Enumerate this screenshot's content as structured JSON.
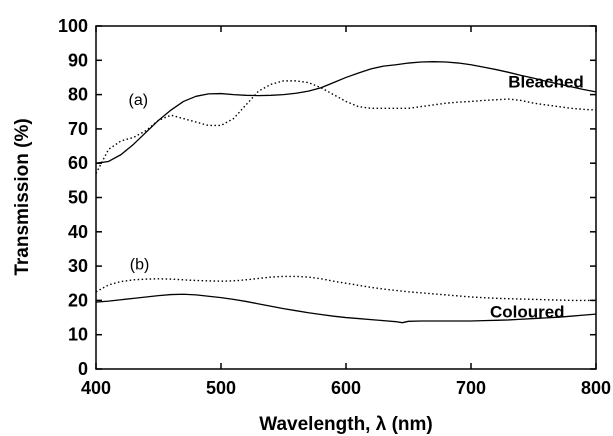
{
  "chart_data": {
    "type": "line",
    "title": "",
    "xlabel": "Wavelength, λ (nm)",
    "ylabel": "Transmission (%)",
    "xlim": [
      400,
      800
    ],
    "ylim": [
      0,
      100
    ],
    "xticks": [
      400,
      500,
      600,
      700,
      800
    ],
    "yticks": [
      0,
      10,
      20,
      30,
      40,
      50,
      60,
      70,
      80,
      90,
      100
    ],
    "grid": false,
    "legend": "none",
    "annotations": [
      {
        "text": "(a)",
        "x": 426,
        "y": 77
      },
      {
        "text": "Bleached",
        "x": 760,
        "y": 82
      },
      {
        "text": "(b)",
        "x": 427,
        "y": 29
      },
      {
        "text": "Coloured",
        "x": 745,
        "y": 15
      }
    ],
    "series": [
      {
        "style": "solid",
        "color": "#000000",
        "x": [
          400,
          410,
          420,
          430,
          440,
          450,
          460,
          470,
          480,
          490,
          500,
          510,
          520,
          530,
          540,
          550,
          560,
          570,
          580,
          590,
          600,
          610,
          620,
          630,
          640,
          650,
          660,
          670,
          680,
          690,
          700,
          710,
          720,
          730,
          740,
          750,
          760,
          770,
          780,
          790,
          800
        ],
        "y": [
          60,
          60.5,
          62.5,
          65.5,
          69,
          72.5,
          75.5,
          78,
          79.5,
          80.2,
          80.3,
          80,
          79.8,
          79.7,
          79.8,
          80,
          80.4,
          81,
          82,
          83.5,
          85,
          86.3,
          87.5,
          88.3,
          88.7,
          89.2,
          89.5,
          89.6,
          89.5,
          89.2,
          88.7,
          88,
          87.3,
          86.5,
          85.6,
          84.8,
          83.9,
          83.1,
          82.3,
          81.5,
          80.8
        ]
      },
      {
        "style": "dotted",
        "color": "#000000",
        "x": [
          400,
          410,
          420,
          430,
          440,
          450,
          460,
          470,
          480,
          490,
          500,
          510,
          520,
          530,
          540,
          550,
          560,
          570,
          580,
          590,
          600,
          610,
          620,
          630,
          640,
          650,
          660,
          670,
          680,
          690,
          700,
          710,
          720,
          730,
          740,
          750,
          760,
          770,
          780,
          790,
          800
        ],
        "y": [
          57,
          64,
          66.5,
          67.5,
          69.5,
          72.5,
          74,
          73,
          72,
          71,
          71,
          73,
          77,
          81,
          83,
          84,
          84,
          83.5,
          82,
          80,
          78,
          76.5,
          76,
          76,
          76,
          76,
          76.5,
          77,
          77.5,
          77.8,
          78,
          78.3,
          78.5,
          78.7,
          78.3,
          77.5,
          77,
          76.5,
          76,
          75.7,
          75.5
        ]
      },
      {
        "style": "dotted",
        "color": "#000000",
        "x": [
          400,
          410,
          420,
          430,
          440,
          450,
          460,
          470,
          480,
          490,
          500,
          510,
          520,
          530,
          540,
          550,
          560,
          570,
          580,
          590,
          600,
          610,
          620,
          630,
          640,
          650,
          660,
          670,
          680,
          690,
          700,
          710,
          720,
          730,
          740,
          750,
          760,
          770,
          780,
          790,
          800
        ],
        "y": [
          22.5,
          24.5,
          25.5,
          26,
          26.2,
          26.3,
          26.2,
          26,
          25.8,
          25.7,
          25.6,
          25.7,
          26,
          26.4,
          26.8,
          27,
          27,
          26.8,
          26.3,
          25.6,
          25,
          24.4,
          23.8,
          23.3,
          22.9,
          22.5,
          22.2,
          21.9,
          21.6,
          21.3,
          21,
          20.8,
          20.6,
          20.5,
          20.4,
          20.3,
          20.2,
          20.1,
          20,
          20,
          20
        ]
      },
      {
        "style": "solid",
        "color": "#000000",
        "x": [
          400,
          410,
          420,
          430,
          440,
          450,
          460,
          470,
          480,
          490,
          500,
          510,
          520,
          530,
          540,
          550,
          560,
          570,
          580,
          590,
          600,
          610,
          620,
          630,
          640,
          645,
          650,
          660,
          670,
          680,
          690,
          700,
          710,
          720,
          730,
          740,
          750,
          760,
          770,
          780,
          790,
          800
        ],
        "y": [
          19.5,
          19.8,
          20.2,
          20.6,
          21,
          21.4,
          21.7,
          21.8,
          21.6,
          21.2,
          20.8,
          20.3,
          19.7,
          19,
          18.3,
          17.6,
          17,
          16.4,
          15.9,
          15.4,
          15,
          14.7,
          14.4,
          14.1,
          13.8,
          13.5,
          13.9,
          14,
          14,
          14,
          14,
          14,
          14.1,
          14.2,
          14.3,
          14.5,
          14.7,
          14.9,
          15.1,
          15.4,
          15.7,
          16
        ]
      }
    ]
  }
}
